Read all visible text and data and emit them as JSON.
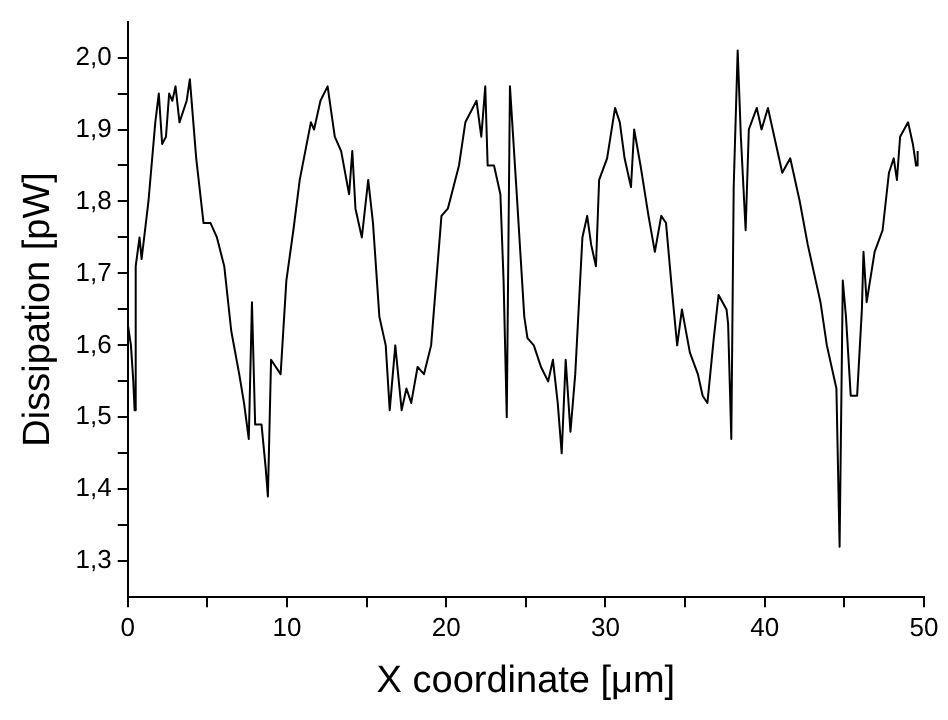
{
  "chart_data": {
    "type": "line",
    "xlabel": "X coordinate [μm]",
    "ylabel": "Dissipation [pW]",
    "x": [
      0,
      0.2,
      0.35,
      0.43,
      0.5,
      0.74,
      0.87,
      1.3,
      1.73,
      1.95,
      2.16,
      2.4,
      2.6,
      2.8,
      3.0,
      3.25,
      3.7,
      3.9,
      4.3,
      4.76,
      5.2,
      5.6,
      6.06,
      6.5,
      7.0,
      7.3,
      7.6,
      7.8,
      8.0,
      8.4,
      8.66,
      8.8,
      9.0,
      9.3,
      9.6,
      9.96,
      10.4,
      10.8,
      11.5,
      11.7,
      12.1,
      12.55,
      13.0,
      13.4,
      13.9,
      14.1,
      14.3,
      14.7,
      15.1,
      15.4,
      15.8,
      16.2,
      16.45,
      16.8,
      17.2,
      17.5,
      17.8,
      18.2,
      18.6,
      19.05,
      19.7,
      20.1,
      20.8,
      21.2,
      21.9,
      22.2,
      22.45,
      22.6,
      23.0,
      23.4,
      23.6,
      23.8,
      24.0,
      24.4,
      24.9,
      25.1,
      25.5,
      25.95,
      26.4,
      26.7,
      27.0,
      27.25,
      27.5,
      27.8,
      28.1,
      28.55,
      28.85,
      29.1,
      29.4,
      29.6,
      30.1,
      30.6,
      30.9,
      31.2,
      31.6,
      31.8,
      32.2,
      32.7,
      33.1,
      33.5,
      33.8,
      34.2,
      34.5,
      34.8,
      35.3,
      35.8,
      36.1,
      36.4,
      36.8,
      37.1,
      37.6,
      37.7,
      37.9,
      38.05,
      38.3,
      38.5,
      38.8,
      39.0,
      39.5,
      39.8,
      40.2,
      40.7,
      41.1,
      41.6,
      42.2,
      42.7,
      43.2,
      43.5,
      43.9,
      44.5,
      44.7,
      44.9,
      45.1,
      45.4,
      45.8,
      46.1,
      46.2,
      46.4,
      46.9,
      47.4,
      47.8,
      48.1,
      48.3,
      48.5,
      49.0,
      49.3,
      49.5,
      49.6
    ],
    "series": [
      {
        "color": "#000000",
        "values": [
          1.63,
          1.6,
          1.55,
          1.51,
          1.71,
          1.75,
          1.72,
          1.8,
          1.91,
          1.95,
          1.88,
          1.89,
          1.95,
          1.94,
          1.96,
          1.91,
          1.94,
          1.97,
          1.86,
          1.77,
          1.77,
          1.75,
          1.71,
          1.62,
          1.56,
          1.52,
          1.47,
          1.66,
          1.49,
          1.49,
          1.43,
          1.39,
          1.58,
          1.57,
          1.56,
          1.69,
          1.76,
          1.83,
          1.91,
          1.9,
          1.94,
          1.96,
          1.89,
          1.87,
          1.81,
          1.87,
          1.79,
          1.75,
          1.83,
          1.77,
          1.64,
          1.6,
          1.51,
          1.6,
          1.51,
          1.54,
          1.52,
          1.57,
          1.56,
          1.6,
          1.78,
          1.79,
          1.85,
          1.91,
          1.94,
          1.89,
          1.96,
          1.85,
          1.85,
          1.81,
          1.69,
          1.5,
          1.96,
          1.82,
          1.64,
          1.61,
          1.6,
          1.57,
          1.55,
          1.58,
          1.52,
          1.45,
          1.58,
          1.48,
          1.56,
          1.75,
          1.78,
          1.74,
          1.71,
          1.83,
          1.86,
          1.93,
          1.91,
          1.86,
          1.82,
          1.9,
          1.85,
          1.78,
          1.73,
          1.78,
          1.77,
          1.67,
          1.6,
          1.65,
          1.59,
          1.56,
          1.53,
          1.52,
          1.61,
          1.67,
          1.65,
          1.63,
          1.47,
          1.82,
          2.01,
          1.89,
          1.76,
          1.9,
          1.93,
          1.9,
          1.93,
          1.88,
          1.84,
          1.86,
          1.8,
          1.74,
          1.69,
          1.66,
          1.6,
          1.54,
          1.32,
          1.69,
          1.64,
          1.53,
          1.53,
          1.65,
          1.73,
          1.66,
          1.73,
          1.76,
          1.84,
          1.86,
          1.83,
          1.89,
          1.91,
          1.88,
          1.85,
          1.87
        ]
      }
    ],
    "xlim": [
      0,
      50
    ],
    "xticks": [
      0,
      {
        "value": 5,
        "label": null
      },
      10,
      {
        "value": 15,
        "label": null
      },
      20,
      {
        "value": 25,
        "label": null
      },
      30,
      {
        "value": 35,
        "label": null
      },
      40,
      {
        "value": 45,
        "label": null
      },
      50
    ],
    "ylim": [
      1.25,
      2.05
    ],
    "yticks": [
      {
        "value": 1.3,
        "label": "1,3"
      },
      {
        "value": 1.35,
        "label": null
      },
      {
        "value": 1.4,
        "label": "1,4"
      },
      {
        "value": 1.45,
        "label": null
      },
      {
        "value": 1.5,
        "label": "1,5"
      },
      {
        "value": 1.55,
        "label": null
      },
      {
        "value": 1.6,
        "label": "1,6"
      },
      {
        "value": 1.65,
        "label": null
      },
      {
        "value": 1.7,
        "label": "1,7"
      },
      {
        "value": 1.75,
        "label": null
      },
      {
        "value": 1.8,
        "label": "1,8"
      },
      {
        "value": 1.85,
        "label": null
      },
      {
        "value": 1.9,
        "label": "1,9"
      },
      {
        "value": 1.95,
        "label": null
      },
      {
        "value": 2.0,
        "label": "2,0"
      }
    ],
    "grid": false,
    "legend": false,
    "marker": "none",
    "line_style": "solid"
  }
}
